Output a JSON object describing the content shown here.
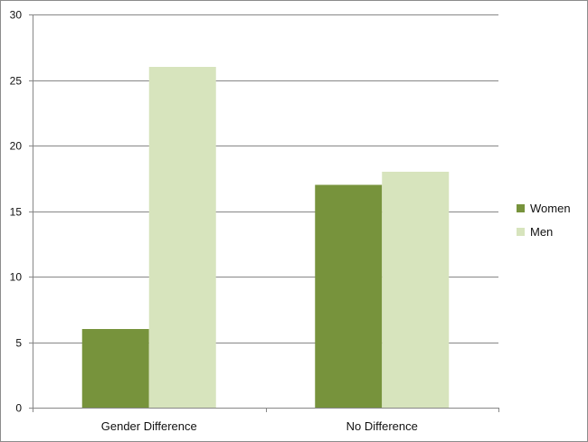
{
  "chart_data": {
    "type": "bar",
    "categories": [
      "Gender Difference",
      "No Difference"
    ],
    "series": [
      {
        "name": "Women",
        "values": [
          6,
          17
        ],
        "color": "#77933c"
      },
      {
        "name": "Men",
        "values": [
          26,
          18
        ],
        "color": "#d7e4bd"
      }
    ],
    "title": "",
    "xlabel": "",
    "ylabel": "",
    "ylim": [
      0,
      30
    ],
    "yticks": [
      0,
      5,
      10,
      15,
      20,
      25,
      30
    ],
    "grid": true,
    "legend_position": "right"
  }
}
